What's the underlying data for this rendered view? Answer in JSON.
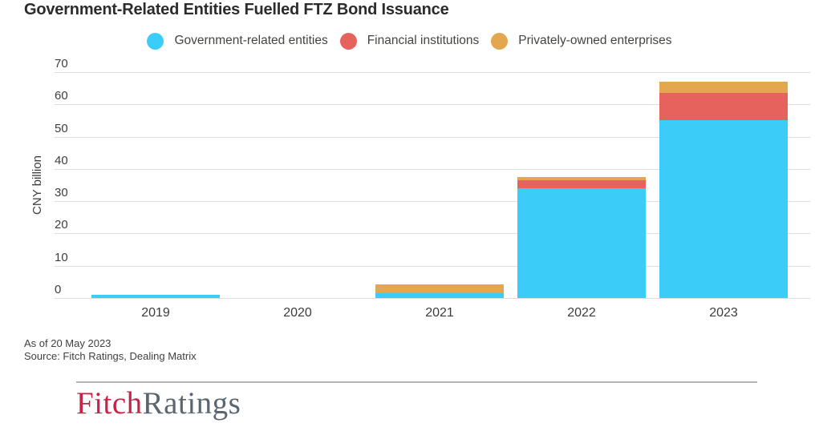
{
  "title": "Government-Related Entities Fuelled FTZ Bond Issuance",
  "legend": [
    {
      "label": "Government-related entities",
      "color": "#3bcdf8"
    },
    {
      "label": "Financial institutions",
      "color": "#e6625c"
    },
    {
      "label": "Privately-owned enterprises",
      "color": "#e2a74f"
    }
  ],
  "chart_data": {
    "type": "bar",
    "stacked": true,
    "categories": [
      "2019",
      "2020",
      "2021",
      "2022",
      "2023"
    ],
    "series": [
      {
        "name": "Government-related entities",
        "color": "#3bcdf8",
        "values": [
          1,
          0,
          1.5,
          34,
          55
        ]
      },
      {
        "name": "Financial institutions",
        "color": "#e6625c",
        "values": [
          0,
          0,
          0,
          2.5,
          8.5
        ]
      },
      {
        "name": "Privately-owned enterprises",
        "color": "#e2a74f",
        "values": [
          0,
          0,
          2.7,
          1,
          3.5
        ]
      }
    ],
    "title": "Government-Related Entities Fuelled FTZ Bond Issuance",
    "xlabel": "",
    "ylabel": "CNY billion",
    "ylim": [
      0,
      70
    ],
    "ytick_step": 10,
    "grid": true,
    "legend_position": "top"
  },
  "footnotes": {
    "as_of": "As of 20 May 2023",
    "source": "Source: Fitch Ratings, Dealing Matrix"
  },
  "logo": {
    "part1": "Fitch",
    "part2": "Ratings"
  }
}
